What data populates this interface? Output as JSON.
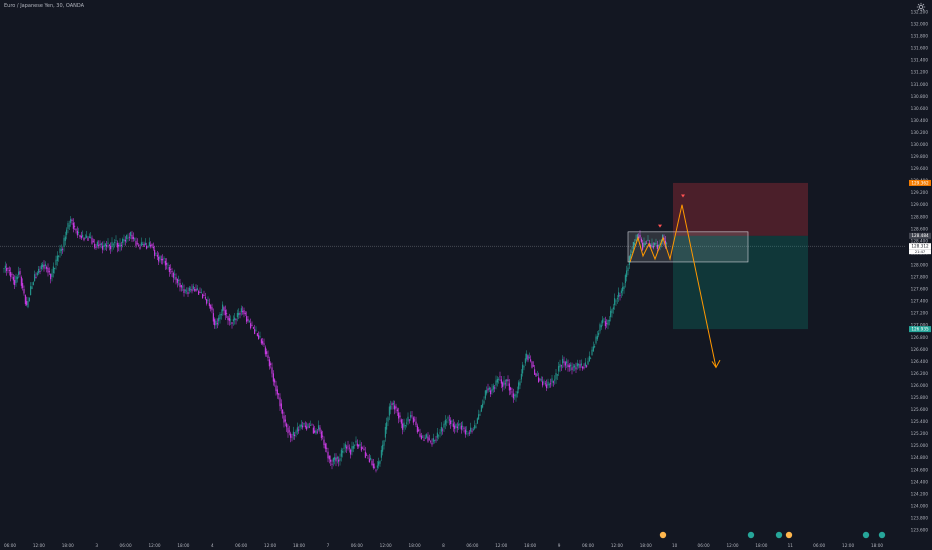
{
  "chart_data": {
    "type": "candlestick",
    "title": "Euro / Japanese Yen, 30, OANDA",
    "ylim": [
      123.6,
      132.2
    ],
    "x_ticks": [
      "06:00",
      "12:00",
      "18:00",
      "3",
      "06:00",
      "12:00",
      "18:00",
      "4",
      "06:00",
      "12:00",
      "18:00",
      "7",
      "06:00",
      "12:00",
      "18:00",
      "8",
      "06:00",
      "12:00",
      "18:00",
      "9",
      "06:00",
      "12:00",
      "18:00",
      "10",
      "06:00",
      "12:00",
      "18:00",
      "11",
      "06:00",
      "12:00",
      "18:00",
      "14"
    ],
    "y_ticks": [
      "132.200",
      "132.000",
      "131.800",
      "131.600",
      "131.400",
      "131.200",
      "131.000",
      "130.800",
      "130.600",
      "130.400",
      "130.200",
      "130.000",
      "129.800",
      "129.600",
      "129.400",
      "129.200",
      "129.000",
      "128.800",
      "128.600",
      "128.400",
      "128.200",
      "128.000",
      "127.800",
      "127.600",
      "127.400",
      "127.200",
      "127.000",
      "126.800",
      "126.600",
      "126.400",
      "126.200",
      "126.000",
      "125.800",
      "125.600",
      "125.400",
      "125.200",
      "125.000",
      "124.800",
      "124.600",
      "124.400",
      "124.200",
      "124.000",
      "123.800",
      "123.600"
    ],
    "price_labels": {
      "stop": "129.362",
      "entry": "128.484",
      "current": "128.312",
      "current_sub": "21:47",
      "target": "126.935"
    },
    "levels": {
      "stop": 129.362,
      "entry": 128.484,
      "current": 128.312,
      "target": 126.935
    },
    "path": [
      [
        0,
        127.95
      ],
      [
        4,
        127.95
      ],
      [
        8,
        127.85
      ],
      [
        12,
        127.7
      ],
      [
        16,
        127.9
      ],
      [
        20,
        127.6
      ],
      [
        24,
        127.3
      ],
      [
        28,
        127.6
      ],
      [
        32,
        127.8
      ],
      [
        36,
        127.9
      ],
      [
        40,
        128.0
      ],
      [
        44,
        127.95
      ],
      [
        48,
        127.8
      ],
      [
        52,
        128.0
      ],
      [
        56,
        128.2
      ],
      [
        60,
        128.3
      ],
      [
        64,
        128.6
      ],
      [
        68,
        128.75
      ],
      [
        72,
        128.6
      ],
      [
        76,
        128.5
      ],
      [
        80,
        128.45
      ],
      [
        84,
        128.45
      ],
      [
        88,
        128.45
      ],
      [
        92,
        128.3
      ],
      [
        96,
        128.35
      ],
      [
        100,
        128.3
      ],
      [
        104,
        128.35
      ],
      [
        108,
        128.3
      ],
      [
        112,
        128.4
      ],
      [
        116,
        128.3
      ],
      [
        120,
        128.4
      ],
      [
        124,
        128.45
      ],
      [
        128,
        128.5
      ],
      [
        132,
        128.4
      ],
      [
        136,
        128.3
      ],
      [
        140,
        128.35
      ],
      [
        144,
        128.3
      ],
      [
        148,
        128.35
      ],
      [
        152,
        128.2
      ],
      [
        156,
        128.1
      ],
      [
        160,
        128.1
      ],
      [
        164,
        128.0
      ],
      [
        168,
        127.9
      ],
      [
        172,
        127.8
      ],
      [
        176,
        127.7
      ],
      [
        180,
        127.6
      ],
      [
        184,
        127.55
      ],
      [
        188,
        127.6
      ],
      [
        192,
        127.6
      ],
      [
        196,
        127.55
      ],
      [
        200,
        127.5
      ],
      [
        204,
        127.4
      ],
      [
        208,
        127.3
      ],
      [
        212,
        127.0
      ],
      [
        216,
        127.1
      ],
      [
        220,
        127.3
      ],
      [
        224,
        127.15
      ],
      [
        228,
        127.05
      ],
      [
        232,
        127.1
      ],
      [
        236,
        127.2
      ],
      [
        240,
        127.25
      ],
      [
        244,
        127.1
      ],
      [
        248,
        127.0
      ],
      [
        252,
        126.9
      ],
      [
        256,
        126.8
      ],
      [
        260,
        126.7
      ],
      [
        264,
        126.5
      ],
      [
        268,
        126.3
      ],
      [
        272,
        126.0
      ],
      [
        276,
        125.8
      ],
      [
        280,
        125.5
      ],
      [
        284,
        125.3
      ],
      [
        288,
        125.15
      ],
      [
        292,
        125.2
      ],
      [
        296,
        125.3
      ],
      [
        300,
        125.35
      ],
      [
        304,
        125.3
      ],
      [
        308,
        125.35
      ],
      [
        312,
        125.2
      ],
      [
        316,
        125.3
      ],
      [
        320,
        125.1
      ],
      [
        324,
        124.9
      ],
      [
        328,
        124.7
      ],
      [
        332,
        124.8
      ],
      [
        336,
        124.75
      ],
      [
        340,
        124.95
      ],
      [
        344,
        125.0
      ],
      [
        348,
        124.9
      ],
      [
        352,
        125.05
      ],
      [
        356,
        125.0
      ],
      [
        360,
        124.95
      ],
      [
        364,
        124.8
      ],
      [
        368,
        124.75
      ],
      [
        372,
        124.6
      ],
      [
        376,
        124.7
      ],
      [
        380,
        125.0
      ],
      [
        384,
        125.4
      ],
      [
        388,
        125.7
      ],
      [
        392,
        125.65
      ],
      [
        396,
        125.5
      ],
      [
        400,
        125.3
      ],
      [
        404,
        125.4
      ],
      [
        408,
        125.5
      ],
      [
        412,
        125.4
      ],
      [
        416,
        125.2
      ],
      [
        420,
        125.1
      ],
      [
        424,
        125.15
      ],
      [
        428,
        125.05
      ],
      [
        432,
        125.1
      ],
      [
        436,
        125.2
      ],
      [
        440,
        125.3
      ],
      [
        444,
        125.45
      ],
      [
        448,
        125.4
      ],
      [
        452,
        125.3
      ],
      [
        456,
        125.35
      ],
      [
        460,
        125.3
      ],
      [
        464,
        125.2
      ],
      [
        468,
        125.25
      ],
      [
        472,
        125.3
      ],
      [
        476,
        125.5
      ],
      [
        480,
        125.7
      ],
      [
        484,
        125.95
      ],
      [
        488,
        125.9
      ],
      [
        492,
        126.0
      ],
      [
        496,
        126.15
      ],
      [
        500,
        126.0
      ],
      [
        504,
        126.1
      ],
      [
        508,
        125.9
      ],
      [
        512,
        125.8
      ],
      [
        516,
        126.0
      ],
      [
        520,
        126.3
      ],
      [
        524,
        126.5
      ],
      [
        528,
        126.4
      ],
      [
        532,
        126.2
      ],
      [
        536,
        126.1
      ],
      [
        540,
        126.05
      ],
      [
        544,
        126.0
      ],
      [
        548,
        126.05
      ],
      [
        552,
        126.1
      ],
      [
        556,
        126.3
      ],
      [
        560,
        126.4
      ],
      [
        564,
        126.35
      ],
      [
        568,
        126.3
      ],
      [
        572,
        126.3
      ],
      [
        576,
        126.35
      ],
      [
        580,
        126.3
      ],
      [
        584,
        126.35
      ],
      [
        588,
        126.5
      ],
      [
        592,
        126.7
      ],
      [
        596,
        126.9
      ],
      [
        600,
        127.1
      ],
      [
        604,
        127.0
      ],
      [
        608,
        127.2
      ],
      [
        612,
        127.4
      ],
      [
        616,
        127.5
      ],
      [
        620,
        127.6
      ],
      [
        624,
        127.9
      ],
      [
        628,
        128.2
      ],
      [
        632,
        128.4
      ],
      [
        636,
        128.5
      ],
      [
        640,
        128.3
      ],
      [
        644,
        128.4
      ],
      [
        648,
        128.3
      ],
      [
        652,
        128.35
      ],
      [
        656,
        128.3
      ],
      [
        660,
        128.45
      ],
      [
        664,
        128.31
      ]
    ]
  },
  "ui": {
    "gear_icon": "gear-icon",
    "colors": {
      "up": "#26a69a",
      "down": "#e040fb",
      "projection": "#ff9800",
      "stop_zone": "rgba(242,54,69,0.25)",
      "target_zone": "rgba(8,153,129,0.25)"
    }
  }
}
